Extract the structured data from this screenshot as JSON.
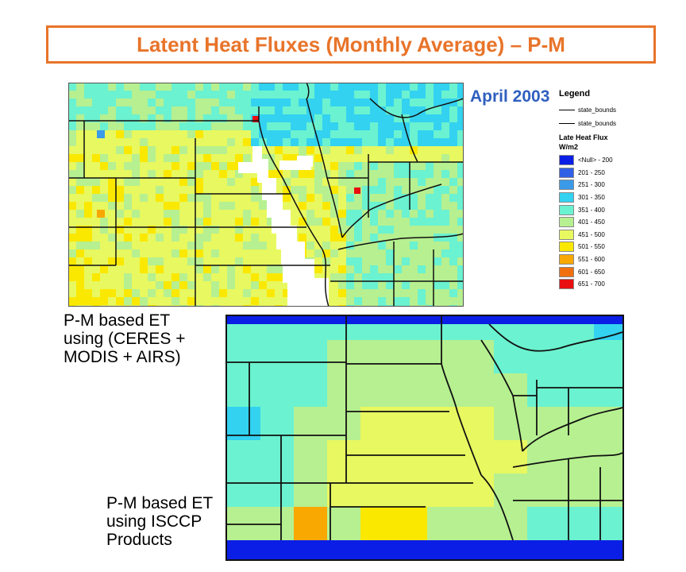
{
  "title": "Latent Heat Fluxes (Monthly Average) – P-M",
  "date_label": "April 2003",
  "legend": {
    "title": "Legend",
    "lines": [
      {
        "label": "state_bounds"
      },
      {
        "label": "state_bounds"
      }
    ],
    "field": "Late Heat Flux",
    "unit": "W/m2",
    "classes": [
      {
        "label": "<Null> - 200",
        "color": "#0a1ee6"
      },
      {
        "label": "201 - 250",
        "color": "#2f60e6"
      },
      {
        "label": "251 - 300",
        "color": "#3a9ae8"
      },
      {
        "label": "301 - 350",
        "color": "#33d2f0"
      },
      {
        "label": "351 - 400",
        "color": "#6bf2d0"
      },
      {
        "label": "401 - 450",
        "color": "#b6f090"
      },
      {
        "label": "451 - 500",
        "color": "#e8f860"
      },
      {
        "label": "501 - 550",
        "color": "#fae800"
      },
      {
        "label": "551 - 600",
        "color": "#f8a800"
      },
      {
        "label": "601 - 650",
        "color": "#f07010"
      },
      {
        "label": "651 - 700",
        "color": "#e81010"
      }
    ]
  },
  "caption_top": [
    "P-M based ET",
    "using (CERES +",
    "MODIS + AIRS)"
  ],
  "caption_bottom": [
    "P-M based ET",
    "using ISCCP",
    "Products"
  ],
  "colors": {
    "accent": "#e8742a",
    "date": "#2f5fbf",
    "no_data": "#ffffff"
  }
}
